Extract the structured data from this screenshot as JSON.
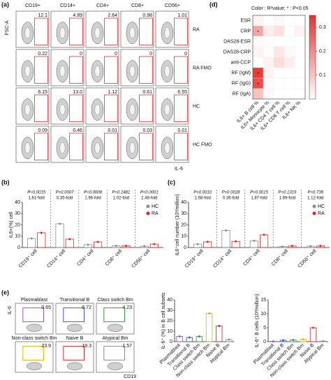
{
  "panel_a": {
    "label": "(a)",
    "y_axis": "FSC-A",
    "x_axis": "IL-6",
    "columns": [
      "CD19+",
      "CD14+",
      "CD4+",
      "CD8+",
      "CD56+"
    ],
    "rows": [
      "RA",
      "RA FMO",
      "HC",
      "HC FMO"
    ],
    "gate_values": [
      [
        "12.1",
        "4.89",
        "2.64",
        "0.98",
        "1.01"
      ],
      [
        "0.22",
        "0",
        "0",
        "0",
        "0"
      ],
      [
        "6.15",
        "13.0",
        "1.12",
        "0.61",
        "6.55"
      ],
      [
        "0.09",
        "0.46",
        "0.01",
        "0.03",
        "0.01"
      ]
    ]
  },
  "panel_e_flow": {
    "label": "(e)",
    "y_axis": "IL-6",
    "x_axis": "CD19",
    "plots": [
      {
        "name": "Plasmablast",
        "value": "0.65",
        "color": "#9b59b6"
      },
      {
        "name": "Transitional B",
        "value": "6.72",
        "color": "#3b5bdb"
      },
      {
        "name": "Class switch Bm",
        "value": "4.23",
        "color": "#2f9e44"
      },
      {
        "name": "Non-class switch Bm",
        "value": "23.9",
        "color": "#e6b800"
      },
      {
        "name": "Naive B",
        "value": "19.3",
        "color": "#e03131"
      },
      {
        "name": "Atypical Bm",
        "value": "1.57",
        "color": "#868e96"
      }
    ]
  },
  "chart_data": [
    {
      "type": "heatmap",
      "label": "(d)",
      "title": "Color : R²value;  * : P<0.05",
      "rows": [
        "ESR",
        "CRP",
        "DAS28-ESR",
        "DAS28-CRP",
        "anti-CCP",
        "RF (IgM)",
        "RF (IgG)",
        "RF (IgA)"
      ],
      "columns": [
        "IL6+ B cell %",
        "IL6+ Monocyte %",
        "IL6+ CD4 T cell %",
        "IL6+ CD8 T cell %",
        "IL6+ NK %"
      ],
      "values": [
        [
          0.02,
          0,
          0.01,
          0,
          0
        ],
        [
          0.15,
          0.03,
          0.05,
          0,
          0.02
        ],
        [
          0.01,
          0,
          0,
          0,
          0
        ],
        [
          0.02,
          0,
          0.04,
          0.01,
          0
        ],
        [
          0,
          0.02,
          0.06,
          0.03,
          0
        ],
        [
          0.33,
          0.02,
          0,
          0,
          0
        ],
        [
          0.3,
          0.01,
          0,
          0,
          0
        ],
        [
          0.1,
          0.01,
          0,
          0,
          0
        ]
      ],
      "significance": {
        "marker": "*",
        "cells": [
          [
            1,
            0
          ],
          [
            5,
            0
          ],
          [
            6,
            0
          ]
        ]
      },
      "color": "#e8302b",
      "zlim": [
        0,
        0.35
      ],
      "zticks": [
        0.1,
        0.2,
        0.3
      ]
    },
    {
      "type": "bar",
      "label": "(b)",
      "y_label": "IL6+(%) cell",
      "categories": [
        "CD19⁺ cell",
        "CD14⁺ cell",
        "CD4⁺ cell",
        "CD8⁺ cell",
        "CD56⁺ cell"
      ],
      "series": [
        {
          "name": "HC",
          "color": "#8c8c8c",
          "values": [
            8,
            21,
            2.5,
            1.5,
            1.2
          ]
        },
        {
          "name": "RA",
          "color": "#d62728",
          "values": [
            13,
            7.4,
            4.9,
            1.5,
            3
          ]
        }
      ],
      "p_values": [
        "P=0.0015",
        "P=0.0007",
        "P=0.0008",
        "P=0.2481",
        "P<0.0001"
      ],
      "fold_labels": [
        "1.61-fold",
        "0.35-fold",
        "1.96-fold",
        "1.02-fold",
        "2.48-fold"
      ],
      "ylim": [
        0,
        40
      ],
      "yticks": [
        0,
        10,
        20,
        30,
        40
      ],
      "legend": "upper right"
    },
    {
      "type": "bar",
      "label": "(c)",
      "y_label": "IL6⁺cell number (10³/million)",
      "categories": [
        "CD19⁺ cell",
        "CD14⁺ cell",
        "CD4⁺ cell",
        "CD8⁺ cell",
        "CD56⁺ cell"
      ],
      "series": [
        {
          "name": "HC",
          "color": "#8c8c8c",
          "values": [
            3,
            15,
            6,
            0.8,
            1.2
          ]
        },
        {
          "name": "RA",
          "color": "#d62728",
          "values": [
            5,
            5.4,
            11.2,
            1.35,
            1.35
          ]
        }
      ],
      "p_values": [
        "P=0.0010",
        "P=0.0028",
        "P=0.0015",
        "P=0.1319",
        "P=0.739"
      ],
      "fold_labels": [
        "1.68-fold",
        "0.36-fold",
        "1.87-fold",
        "1.69-fold",
        "1.12-fold"
      ],
      "ylim": [
        0,
        40
      ],
      "yticks": [
        0,
        10,
        20,
        30,
        40
      ],
      "legend": "upper right"
    },
    {
      "type": "bar",
      "y_label": "IL-6⁺ (%) in B cell subsets",
      "categories": [
        "Plasmablast",
        "Transitional B",
        "Class switch Bm",
        "Non-class switch Bm",
        "Naive B",
        "Atypical Bm"
      ],
      "values": [
        5,
        4,
        5,
        27,
        15,
        2
      ],
      "colors": [
        "#9b59b6",
        "#3b5bdb",
        "#2f9e44",
        "#e6b800",
        "#e03131",
        "#868e96"
      ],
      "ylim": [
        0,
        40
      ],
      "yticks": [
        0,
        10,
        20,
        30,
        40
      ]
    },
    {
      "type": "bar",
      "y_label": "IL-6⁺ B cells (10³/million)",
      "categories": [
        "Plasmablast",
        "Transitional B",
        "Class switch Bm",
        "Non-class switch Bm",
        "Naive B",
        "Atypical Bm"
      ],
      "values": [
        0.1,
        0.5,
        0.6,
        0.8,
        5,
        0.2
      ],
      "colors": [
        "#9b59b6",
        "#3b5bdb",
        "#2f9e44",
        "#e6b800",
        "#e03131",
        "#868e96"
      ],
      "ylim": [
        0,
        15
      ],
      "yticks": [
        0,
        5,
        10,
        15
      ]
    }
  ]
}
